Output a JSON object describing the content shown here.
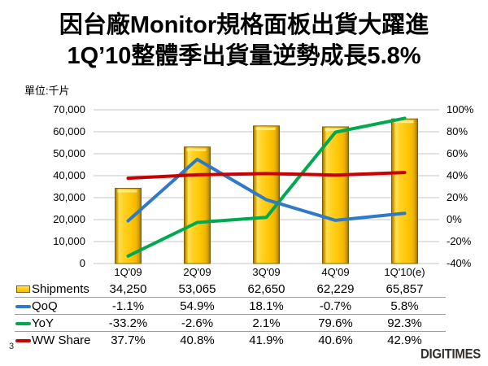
{
  "title": {
    "line1": "因台廠Monitor規格面板出貨大躍進",
    "line2": "1Q’10整體季出貨量逆勢成長5.8%"
  },
  "unit_label": "單位:千片",
  "chart_data": {
    "type": "combo-bar-line",
    "categories": [
      "1Q'09",
      "2Q'09",
      "3Q'09",
      "4Q'09",
      "1Q'10(e)"
    ],
    "bar_series": {
      "name": "Shipments",
      "values": [
        34250,
        53065,
        62650,
        62229,
        65857
      ],
      "color": "#FFC90E",
      "axis": "left"
    },
    "line_series": [
      {
        "name": "QoQ",
        "values": [
          -1.1,
          54.9,
          18.1,
          -0.7,
          5.8
        ],
        "color": "#2E79C8",
        "axis": "right"
      },
      {
        "name": "YoY",
        "values": [
          -33.2,
          -2.6,
          2.1,
          79.6,
          92.3
        ],
        "color": "#00A94F",
        "axis": "right"
      },
      {
        "name": "WW Share",
        "values": [
          37.7,
          40.8,
          41.9,
          40.6,
          42.9
        ],
        "color": "#C80000",
        "axis": "right"
      }
    ],
    "left_axis": {
      "min": 0,
      "max": 70000,
      "step": 10000,
      "tick_labels": [
        "70,000",
        "60,000",
        "50,000",
        "40,000",
        "30,000",
        "20,000",
        "10,000",
        "0"
      ]
    },
    "right_axis": {
      "min": -40,
      "max": 100,
      "step": 20,
      "tick_labels": [
        "100%",
        "80%",
        "60%",
        "40%",
        "20%",
        "0%",
        "-20%",
        "-40%"
      ]
    },
    "grid": true,
    "legend_position": "table-left",
    "gridline_color": "#c6c6c6"
  },
  "table": {
    "rows": [
      {
        "label": "Shipments",
        "swatch": "bar",
        "color": "#FFC90E",
        "values": [
          "34,250",
          "53,065",
          "62,650",
          "62,229",
          "65,857"
        ]
      },
      {
        "label": "QoQ",
        "swatch": "line",
        "color": "#2E79C8",
        "values": [
          "-1.1%",
          "54.9%",
          "18.1%",
          "-0.7%",
          "5.8%"
        ]
      },
      {
        "label": "YoY",
        "swatch": "line",
        "color": "#00A94F",
        "values": [
          "-33.2%",
          "-2.6%",
          "2.1%",
          "79.6%",
          "92.3%"
        ]
      },
      {
        "label": "WW Share",
        "swatch": "line",
        "color": "#C80000",
        "values": [
          "37.7%",
          "40.8%",
          "41.9%",
          "40.6%",
          "42.9%"
        ]
      }
    ]
  },
  "footer": {
    "page_number": "3",
    "logo_text": "DIGITIMES"
  }
}
